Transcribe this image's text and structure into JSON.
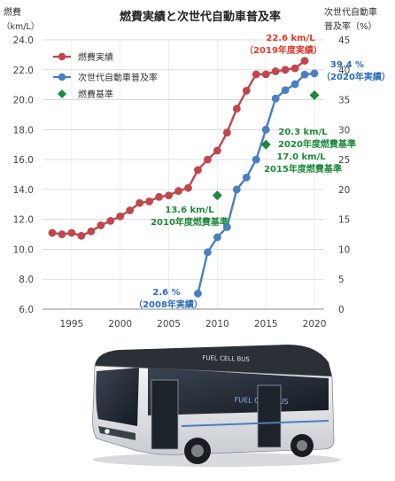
{
  "chart_data": {
    "type": "line",
    "title": "燃費実績と次世代自動車普及率",
    "ylabel_left": [
      "燃費",
      "（km/L）"
    ],
    "ylabel_right": [
      "次世代自動車",
      "普及率（%）"
    ],
    "xlim": [
      1992,
      2021
    ],
    "ylim_left": [
      6.0,
      24.0
    ],
    "ylim_right": [
      0,
      45
    ],
    "xticks": [
      1995,
      2000,
      2005,
      2010,
      2015,
      2020
    ],
    "yticks_left": [
      "6.0",
      "8.0",
      "10.0",
      "12.0",
      "14.0",
      "16.0",
      "18.0",
      "20.0",
      "22.0",
      "24.0"
    ],
    "yticks_right": [
      "0",
      "5",
      "10",
      "15",
      "20",
      "25",
      "30",
      "35",
      "40",
      "45"
    ],
    "grid": true,
    "legend_position": "top-left",
    "series": [
      {
        "name": "燃費実績",
        "axis": "left",
        "color": "#c0474c",
        "x": [
          1993,
          1994,
          1995,
          1996,
          1997,
          1998,
          1999,
          2000,
          2001,
          2002,
          2003,
          2004,
          2005,
          2006,
          2007,
          2008,
          2009,
          2010,
          2011,
          2012,
          2013,
          2014,
          2015,
          2016,
          2017,
          2018,
          2019
        ],
        "values": [
          11.1,
          11.0,
          11.1,
          10.9,
          11.2,
          11.6,
          11.9,
          12.2,
          12.6,
          13.1,
          13.2,
          13.5,
          13.6,
          13.9,
          14.1,
          15.3,
          16.0,
          16.6,
          17.8,
          19.4,
          20.6,
          21.7,
          21.7,
          21.9,
          22.0,
          22.1,
          22.6
        ]
      },
      {
        "name": "次世代自動車普及率",
        "axis": "right",
        "color": "#4a7fc1",
        "x": [
          2008,
          2009,
          2010,
          2011,
          2012,
          2013,
          2014,
          2015,
          2016,
          2017,
          2018,
          2019,
          2020
        ],
        "values": [
          2.6,
          9.5,
          12.0,
          13.7,
          20.0,
          22.0,
          25.0,
          30.0,
          35.2,
          36.6,
          37.6,
          39.2,
          39.4
        ]
      },
      {
        "name": "燃費基準",
        "axis": "left",
        "color": "#1e8a3c",
        "marker": "diamond",
        "x": [
          2010,
          2015,
          2020
        ],
        "values": [
          13.6,
          17.0,
          20.3
        ]
      }
    ],
    "annotations": [
      {
        "line1": "22.6 km/L",
        "line2": "（2019年度実績）",
        "color": "#e03a28"
      },
      {
        "line1": "39.4 %",
        "line2": "（2020年実績）",
        "color": "#2a6bbf"
      },
      {
        "line1": "20.3 km/L",
        "line2": "2020年度燃費基準",
        "color": "#1e8a3c"
      },
      {
        "line1": "17.0 km/L",
        "line2": "2015年度燃費基準",
        "color": "#1e8a3c"
      },
      {
        "line1": "13.6 km/L",
        "line2": "2010年度燃費基準",
        "color": "#1e8a3c"
      },
      {
        "line1": "2.6 %",
        "line2": "（2008年実績）",
        "color": "#2a6bbf"
      }
    ]
  },
  "bus": {
    "sign": "FUEL CELL BUS",
    "side_text": "FUEL CELL BUS"
  }
}
